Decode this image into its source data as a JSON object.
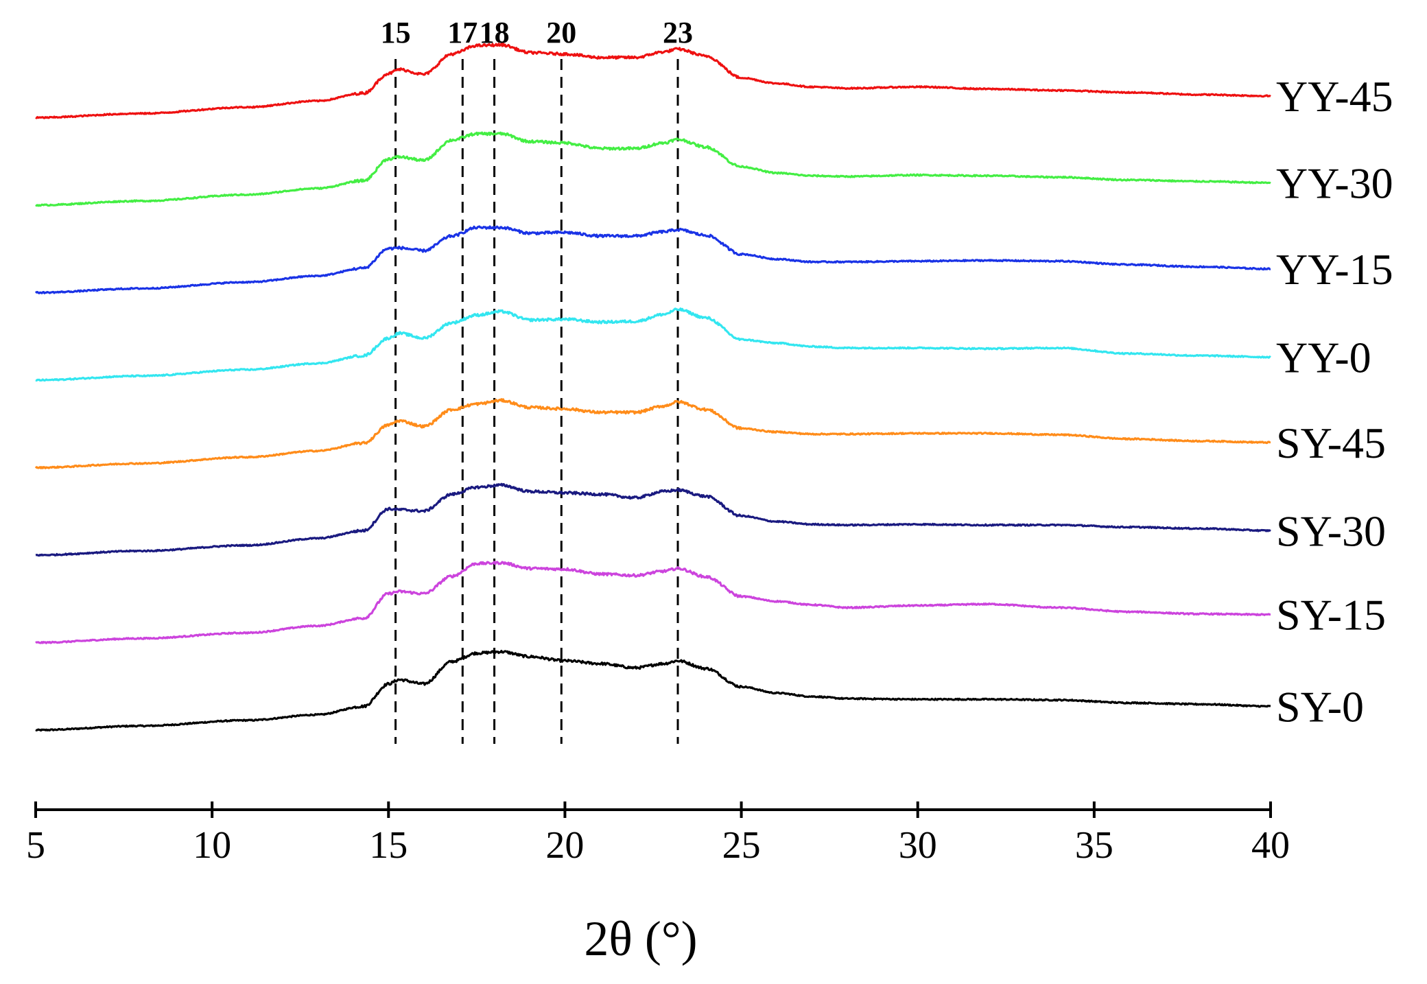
{
  "chart_data": {
    "type": "line",
    "title": "",
    "xlabel": "2θ (°)",
    "ylabel": "",
    "xlim": [
      5,
      40
    ],
    "x_ticks": [
      5,
      10,
      15,
      20,
      25,
      30,
      35,
      40
    ],
    "grid": false,
    "legend": "right-of-curves",
    "reference_lines": [
      {
        "x": 15.2,
        "label": "15"
      },
      {
        "x": 17.1,
        "label": "17"
      },
      {
        "x": 18.0,
        "label": "18"
      },
      {
        "x": 19.9,
        "label": "20"
      },
      {
        "x": 23.2,
        "label": "23"
      }
    ],
    "x": [
      5,
      8,
      11,
      13,
      14.3,
      15.0,
      15.3,
      16.0,
      16.8,
      17.5,
      18.2,
      19.0,
      20.0,
      21.0,
      22.0,
      22.8,
      23.2,
      24.0,
      25.0,
      26.0,
      27.0,
      28.0,
      30.0,
      32.0,
      34.0,
      36.0,
      38.0,
      40.0
    ],
    "series": [
      {
        "name": "SY-0",
        "color": "#000000",
        "offset": 0,
        "values": [
          0.0,
          0.6,
          1.4,
          2.2,
          3.4,
          6.6,
          7.2,
          6.6,
          9.8,
          11.0,
          11.2,
          10.5,
          9.9,
          9.5,
          8.9,
          9.5,
          9.9,
          8.8,
          6.2,
          5.3,
          4.8,
          4.5,
          4.4,
          4.4,
          4.3,
          3.9,
          3.7,
          3.4
        ]
      },
      {
        "name": "SY-15",
        "color": "#cc44dd",
        "offset": 12.5,
        "values": [
          0.0,
          0.6,
          1.4,
          2.4,
          3.5,
          7.0,
          7.3,
          7.0,
          9.5,
          11.3,
          11.4,
          10.6,
          10.5,
          9.8,
          9.6,
          10.2,
          10.6,
          9.4,
          6.6,
          5.9,
          5.4,
          5.0,
          5.3,
          5.5,
          5.0,
          4.4,
          4.1,
          4.0
        ]
      },
      {
        "name": "SY-30",
        "color": "#1a1a80",
        "offset": 25,
        "values": [
          0.0,
          0.6,
          1.4,
          2.4,
          3.5,
          6.6,
          6.5,
          6.3,
          8.7,
          9.7,
          10.0,
          9.1,
          8.9,
          8.7,
          8.2,
          9.1,
          9.3,
          8.4,
          5.6,
          4.8,
          4.4,
          4.3,
          4.4,
          4.3,
          4.3,
          4.0,
          3.8,
          3.5
        ]
      },
      {
        "name": "SY-45",
        "color": "#ff8c1a",
        "offset": 37.5,
        "values": [
          0.0,
          0.6,
          1.5,
          2.4,
          3.5,
          6.1,
          6.7,
          5.9,
          8.3,
          9.1,
          9.6,
          8.6,
          8.4,
          7.9,
          7.9,
          8.8,
          9.4,
          8.3,
          5.6,
          5.1,
          4.8,
          4.8,
          4.9,
          4.9,
          4.7,
          4.1,
          3.8,
          3.6
        ]
      },
      {
        "name": "YY-0",
        "color": "#33e6f0",
        "offset": 50,
        "values": [
          0.0,
          0.6,
          1.5,
          2.4,
          3.5,
          6.0,
          6.7,
          6.0,
          8.2,
          9.3,
          9.8,
          8.6,
          8.7,
          8.3,
          8.4,
          9.4,
          10.1,
          8.9,
          5.8,
          5.3,
          4.8,
          4.6,
          4.6,
          4.5,
          4.6,
          3.8,
          3.5,
          3.3
        ]
      },
      {
        "name": "YY-15",
        "color": "#1a33e6",
        "offset": 62.5,
        "values": [
          0.0,
          0.6,
          1.5,
          2.4,
          3.5,
          6.3,
          6.4,
          6.0,
          8.1,
          9.3,
          9.3,
          8.5,
          8.6,
          8.1,
          8.1,
          8.7,
          9.0,
          8.2,
          5.5,
          4.8,
          4.4,
          4.4,
          4.5,
          4.6,
          4.5,
          4.0,
          3.7,
          3.4
        ]
      },
      {
        "name": "YY-30",
        "color": "#44ee44",
        "offset": 75,
        "values": [
          0.0,
          0.6,
          1.5,
          2.4,
          3.5,
          6.6,
          6.9,
          6.4,
          9.3,
          10.2,
          10.2,
          9.1,
          8.9,
          8.1,
          8.1,
          8.9,
          9.4,
          8.3,
          5.5,
          4.6,
          4.2,
          4.1,
          4.3,
          4.2,
          4.0,
          3.6,
          3.4,
          3.2
        ]
      },
      {
        "name": "YY-45",
        "color": "#ee1111",
        "offset": 87.5,
        "values": [
          0.0,
          0.6,
          1.5,
          2.4,
          3.5,
          6.3,
          6.9,
          6.2,
          9.1,
          10.3,
          10.4,
          9.3,
          9.1,
          8.6,
          8.6,
          9.4,
          9.8,
          8.8,
          5.7,
          4.9,
          4.4,
          4.2,
          4.4,
          4.1,
          3.9,
          3.6,
          3.3,
          3.1
        ]
      }
    ]
  }
}
